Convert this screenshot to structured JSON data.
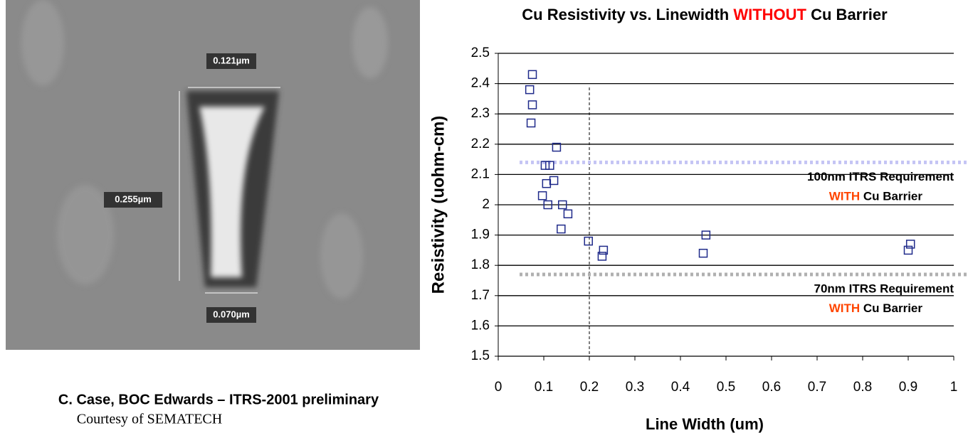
{
  "chart_data": {
    "type": "scatter",
    "title_parts": [
      "Cu Resistivity vs. Linewidth ",
      "WITHOUT",
      " Cu Barrier"
    ],
    "title_colors": [
      "#000000",
      "#ff0000",
      "#000000"
    ],
    "x_label": "Line Width (um)",
    "y_label": "Resistivity (uohm-cm)",
    "xlim": [
      0,
      1
    ],
    "xticks": [
      0,
      0.1,
      0.2,
      0.3,
      0.4,
      0.5,
      0.6,
      0.7,
      0.8,
      0.9,
      1
    ],
    "ylim": [
      1.5,
      2.5
    ],
    "yticks": [
      1.5,
      1.6,
      1.7,
      1.8,
      1.9,
      2,
      2.1,
      2.2,
      2.3,
      2.4,
      2.5
    ],
    "grid": true,
    "marker_color": "#1f2a8a",
    "vline": 0.2,
    "x": [
      0.075,
      0.069,
      0.075,
      0.072,
      0.128,
      0.103,
      0.113,
      0.122,
      0.106,
      0.097,
      0.109,
      0.141,
      0.153,
      0.138,
      0.198,
      0.231,
      0.228,
      0.456,
      0.45,
      0.905,
      0.9
    ],
    "values": [
      2.43,
      2.38,
      2.33,
      2.27,
      2.19,
      2.13,
      2.13,
      2.08,
      2.07,
      2.03,
      2.0,
      2.0,
      1.97,
      1.92,
      1.88,
      1.85,
      1.83,
      1.9,
      1.84,
      1.87,
      1.85
    ],
    "reference_lines": [
      {
        "y": 2.14,
        "color": "#c4c4f4",
        "label": "100nm ITRS Requirement",
        "emphasis": "WITH",
        "suffix": "Cu Barrier"
      },
      {
        "y": 1.77,
        "color": "#b0b0b0",
        "label": "70nm ITRS Requirement",
        "emphasis": "WITH",
        "suffix": "Cu Barrier"
      }
    ],
    "emphasis_color": "#ff4500"
  },
  "figure": {
    "measurements": [
      "0.121µm",
      "0.255µm",
      "0.070µm"
    ],
    "caption": "C. Case, BOC Edwards – ITRS-2001 preliminary",
    "credit": "Courtesy of SEMATECH"
  }
}
